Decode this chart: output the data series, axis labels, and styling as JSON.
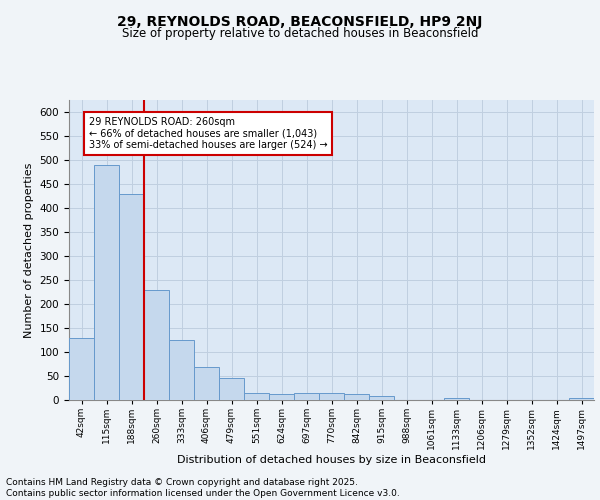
{
  "title_line1": "29, REYNOLDS ROAD, BEACONSFIELD, HP9 2NJ",
  "title_line2": "Size of property relative to detached houses in Beaconsfield",
  "xlabel": "Distribution of detached houses by size in Beaconsfield",
  "ylabel": "Number of detached properties",
  "bar_color": "#c5d8ed",
  "bar_edge_color": "#6699cc",
  "grid_color": "#c0cfe0",
  "background_color": "#dce8f5",
  "fig_background": "#f0f4f8",
  "vline_color": "#cc0000",
  "vline_x": 2.5,
  "annotation_text": "29 REYNOLDS ROAD: 260sqm\n← 66% of detached houses are smaller (1,043)\n33% of semi-detached houses are larger (524) →",
  "annotation_box_color": "#ffffff",
  "annotation_box_edge": "#cc0000",
  "categories": [
    "42sqm",
    "115sqm",
    "188sqm",
    "260sqm",
    "333sqm",
    "406sqm",
    "479sqm",
    "551sqm",
    "624sqm",
    "697sqm",
    "770sqm",
    "842sqm",
    "915sqm",
    "988sqm",
    "1061sqm",
    "1133sqm",
    "1206sqm",
    "1279sqm",
    "1352sqm",
    "1424sqm",
    "1497sqm"
  ],
  "values": [
    130,
    490,
    430,
    230,
    125,
    68,
    45,
    15,
    12,
    15,
    15,
    12,
    8,
    0,
    0,
    5,
    0,
    0,
    0,
    0,
    4
  ],
  "ylim": [
    0,
    625
  ],
  "yticks": [
    0,
    50,
    100,
    150,
    200,
    250,
    300,
    350,
    400,
    450,
    500,
    550,
    600
  ],
  "footer_text": "Contains HM Land Registry data © Crown copyright and database right 2025.\nContains public sector information licensed under the Open Government Licence v3.0.",
  "footer_fontsize": 6.5,
  "title_fontsize1": 10,
  "title_fontsize2": 8.5,
  "axis_label_fontsize": 8,
  "tick_fontsize": 7.5,
  "xtick_fontsize": 6.5
}
